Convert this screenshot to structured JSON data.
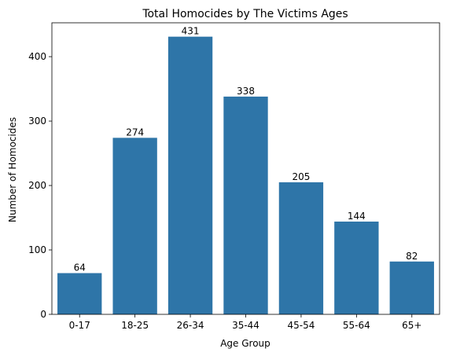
{
  "chart_data": {
    "type": "bar",
    "title": "Total Homocides by The Victims Ages",
    "xlabel": "Age Group",
    "ylabel": "Number of Homocides",
    "categories": [
      "0-17",
      "18-25",
      "26-34",
      "35-44",
      "45-54",
      "55-64",
      "65+"
    ],
    "values": [
      64,
      274,
      431,
      338,
      205,
      144,
      82
    ],
    "data_labels": [
      "64",
      "274",
      "431",
      "338",
      "205",
      "144",
      "82"
    ],
    "ylim": [
      0,
      452.55
    ],
    "yticks": [
      0,
      100,
      200,
      300,
      400
    ],
    "ytick_labels": [
      "0",
      "100",
      "200",
      "300",
      "400"
    ],
    "grid": false,
    "legend": "none",
    "bar_color": "#2e75a8"
  }
}
